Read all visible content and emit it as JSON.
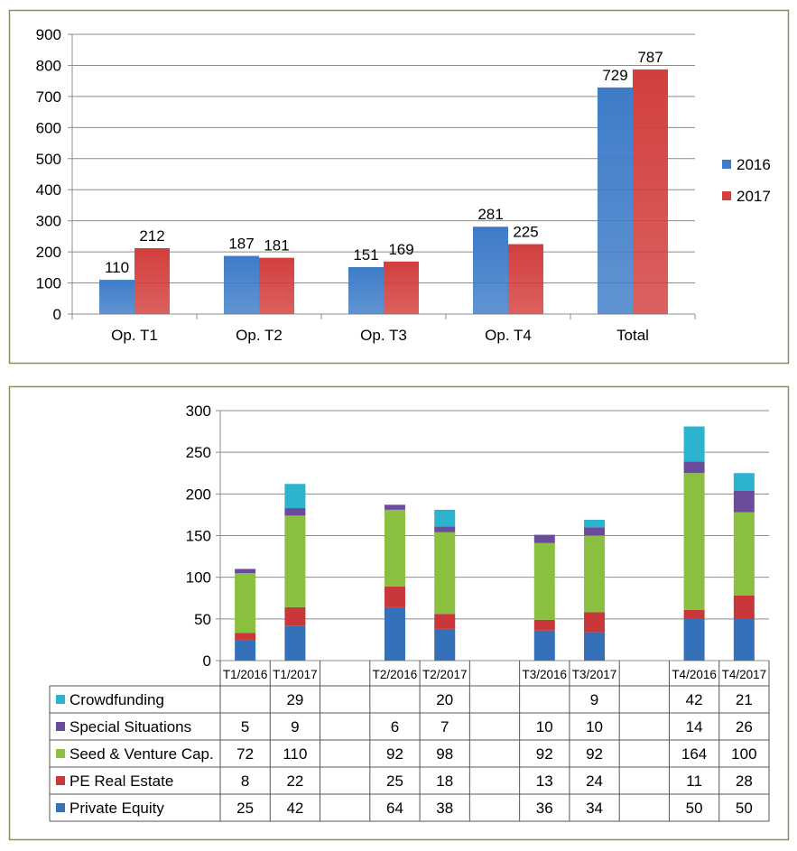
{
  "colors": {
    "frame": "#8a8e62",
    "s2016": "#3e7cc8",
    "s2017": "#d23f3d",
    "private_equity": "#3571b8",
    "pe_real_estate": "#c8383a",
    "seed_venture": "#8bbf3f",
    "special_situations": "#6a4c9c",
    "crowdfunding": "#2cb4cf"
  },
  "chart_data": [
    {
      "type": "bar",
      "title": "",
      "xlabel": "",
      "ylabel": "",
      "ylim": [
        0,
        900
      ],
      "yticks": [
        "0",
        "100",
        "200",
        "300",
        "400",
        "500",
        "600",
        "700",
        "800",
        "900"
      ],
      "grid": true,
      "legend_position": "right",
      "categories": [
        "Op. T1",
        "Op. T2",
        "Op. T3",
        "Op. T4",
        "Total"
      ],
      "series": [
        {
          "name": "2016",
          "values": [
            110,
            187,
            151,
            281,
            729
          ]
        },
        {
          "name": "2017",
          "values": [
            212,
            181,
            169,
            225,
            787
          ]
        }
      ]
    },
    {
      "type": "bar",
      "stacked": true,
      "title": "",
      "xlabel": "",
      "ylabel": "",
      "ylim": [
        0,
        300
      ],
      "yticks": [
        "0",
        "50",
        "100",
        "150",
        "200",
        "250",
        "300"
      ],
      "grid": true,
      "legend_position": "data-table",
      "categories": [
        "T1/2016",
        "T1/2017",
        "",
        "T2/2016",
        "T2/2017",
        "",
        "T3/2016",
        "T3/2017",
        "",
        "T4/2016",
        "T4/2017"
      ],
      "series": [
        {
          "name": "Private Equity",
          "values": [
            25,
            42,
            null,
            64,
            38,
            null,
            36,
            34,
            null,
            50,
            50
          ]
        },
        {
          "name": "PE Real Estate",
          "values": [
            8,
            22,
            null,
            25,
            18,
            null,
            13,
            24,
            null,
            11,
            28
          ]
        },
        {
          "name": "Seed & Venture Cap.",
          "values": [
            72,
            110,
            null,
            92,
            98,
            null,
            92,
            92,
            null,
            164,
            100
          ]
        },
        {
          "name": "Special Situations",
          "values": [
            5,
            9,
            null,
            6,
            7,
            null,
            10,
            10,
            null,
            14,
            26
          ]
        },
        {
          "name": "Crowdfunding",
          "values": [
            null,
            29,
            null,
            null,
            20,
            null,
            null,
            9,
            null,
            42,
            21
          ]
        }
      ]
    }
  ]
}
